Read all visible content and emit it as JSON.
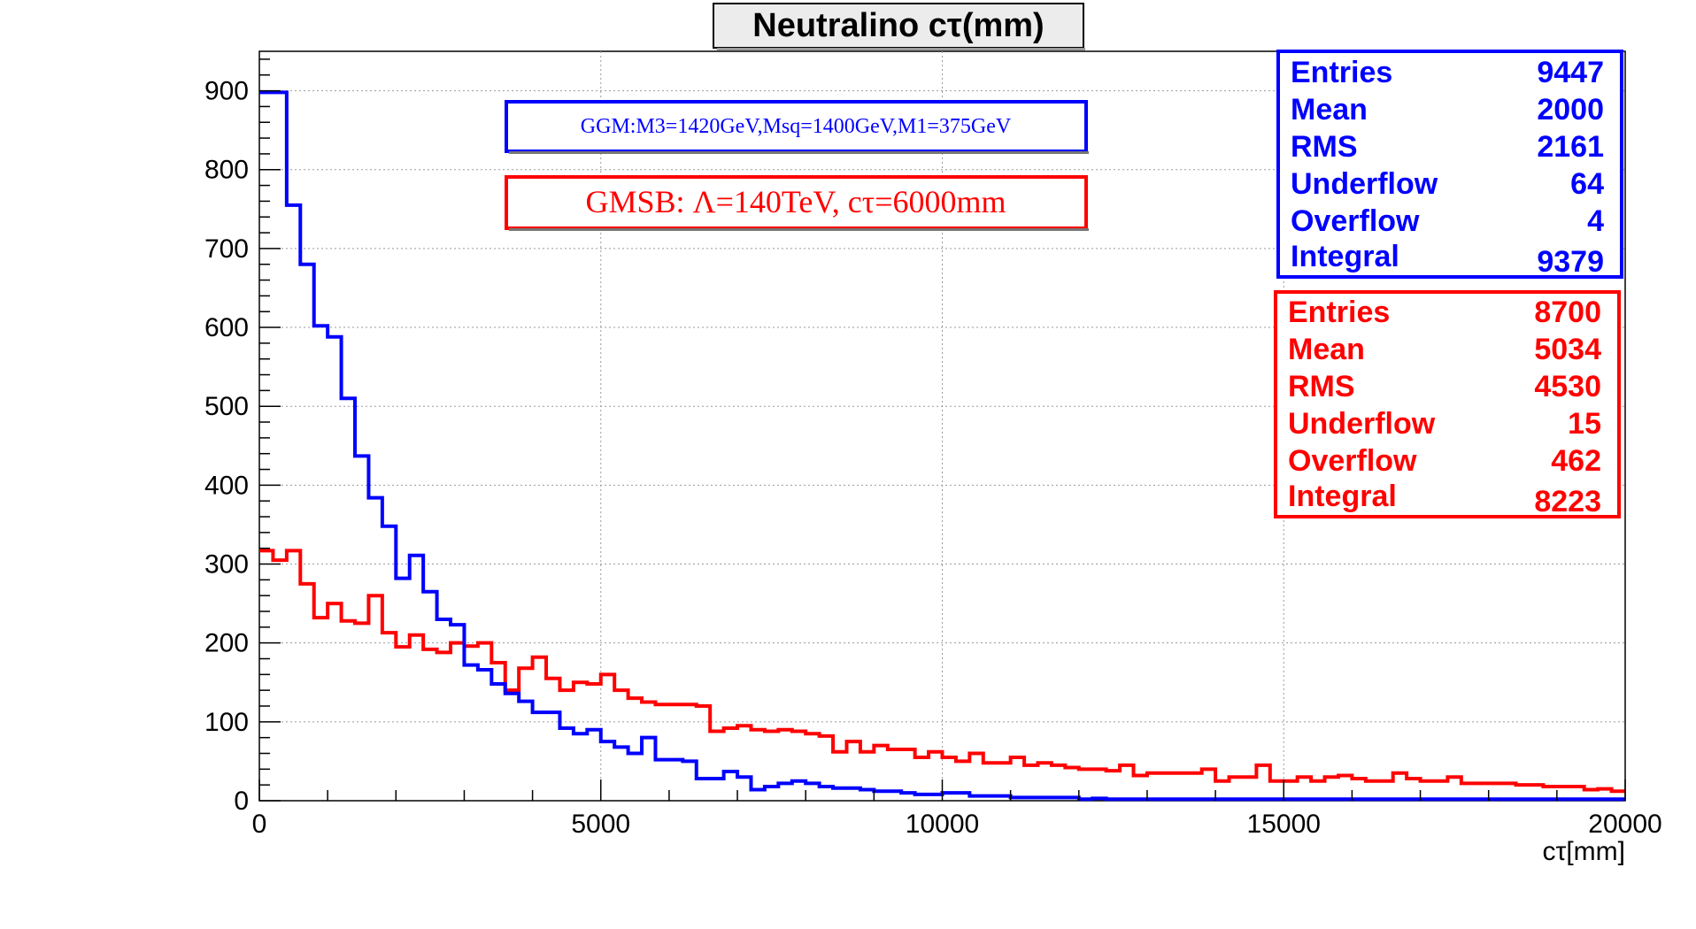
{
  "chart_data": {
    "type": "line",
    "step": true,
    "title": "Neutralino cτ(mm)",
    "xlabel": "cτ[mm]",
    "ylabel": "",
    "xlim": [
      0,
      20000
    ],
    "ylim": [
      0,
      950
    ],
    "xticks": [
      0,
      5000,
      10000,
      15000,
      20000
    ],
    "yticks": [
      0,
      100,
      200,
      300,
      400,
      500,
      600,
      700,
      800,
      900
    ],
    "grid": true,
    "bin_width": 200,
    "series": [
      {
        "color": "#0000ff",
        "values": [
          898,
          898,
          755,
          680,
          602,
          588,
          510,
          437,
          384,
          348,
          282,
          311,
          265,
          230,
          223,
          172,
          166,
          148,
          136,
          126,
          112,
          112,
          92,
          85,
          90,
          75,
          68,
          60,
          80,
          52,
          52,
          50,
          28,
          28,
          37,
          30,
          14,
          18,
          22,
          25,
          22,
          18,
          16,
          16,
          14,
          12,
          12,
          10,
          8,
          8,
          10,
          10,
          6,
          6,
          6,
          4,
          4,
          4,
          4,
          4,
          2,
          3,
          2,
          2,
          2,
          2,
          2,
          2,
          2,
          2,
          2,
          2,
          2,
          2,
          2,
          2,
          2,
          2,
          2,
          2,
          2,
          2,
          2,
          2,
          2,
          2,
          2,
          2,
          2,
          2,
          2,
          2,
          2,
          2,
          2,
          2,
          2,
          2,
          2,
          2
        ]
      },
      {
        "color": "#ff0000",
        "values": [
          317,
          305,
          317,
          275,
          232,
          250,
          228,
          225,
          260,
          213,
          195,
          210,
          192,
          188,
          200,
          196,
          200,
          175,
          140,
          168,
          182,
          155,
          140,
          150,
          148,
          160,
          140,
          130,
          125,
          122,
          122,
          122,
          120,
          88,
          92,
          95,
          90,
          88,
          90,
          88,
          85,
          82,
          62,
          75,
          62,
          70,
          65,
          65,
          55,
          62,
          55,
          50,
          60,
          48,
          48,
          55,
          45,
          48,
          45,
          42,
          40,
          40,
          38,
          45,
          32,
          35,
          35,
          35,
          35,
          40,
          25,
          30,
          30,
          45,
          25,
          25,
          30,
          25,
          30,
          32,
          28,
          25,
          25,
          35,
          28,
          25,
          25,
          30,
          22,
          22,
          22,
          22,
          20,
          20,
          18,
          18,
          18,
          14,
          15,
          12
        ]
      }
    ],
    "legend_boxes": [
      {
        "text": "GGM:M3=1420GeV,Msq=1400GeV,M1=375GeV",
        "color": "#0000ff"
      },
      {
        "text": "GMSB: Λ=140TeV, cτ=6000mm",
        "color": "#ff0000"
      }
    ],
    "stat_boxes": [
      {
        "color": "#0000ff",
        "rows": [
          {
            "label": "Entries",
            "value": "9447"
          },
          {
            "label": "Mean",
            "value": "2000"
          },
          {
            "label": "RMS",
            "value": "2161"
          },
          {
            "label": "Underflow",
            "value": "64"
          },
          {
            "label": "Overflow",
            "value": "4"
          },
          {
            "label": "Integral",
            "value": "9379"
          }
        ]
      },
      {
        "color": "#ff0000",
        "rows": [
          {
            "label": "Entries",
            "value": "8700"
          },
          {
            "label": "Mean",
            "value": "5034"
          },
          {
            "label": "RMS",
            "value": "4530"
          },
          {
            "label": "Underflow",
            "value": "15"
          },
          {
            "label": "Overflow",
            "value": "462"
          },
          {
            "label": "Integral",
            "value": "8223"
          }
        ]
      }
    ]
  }
}
